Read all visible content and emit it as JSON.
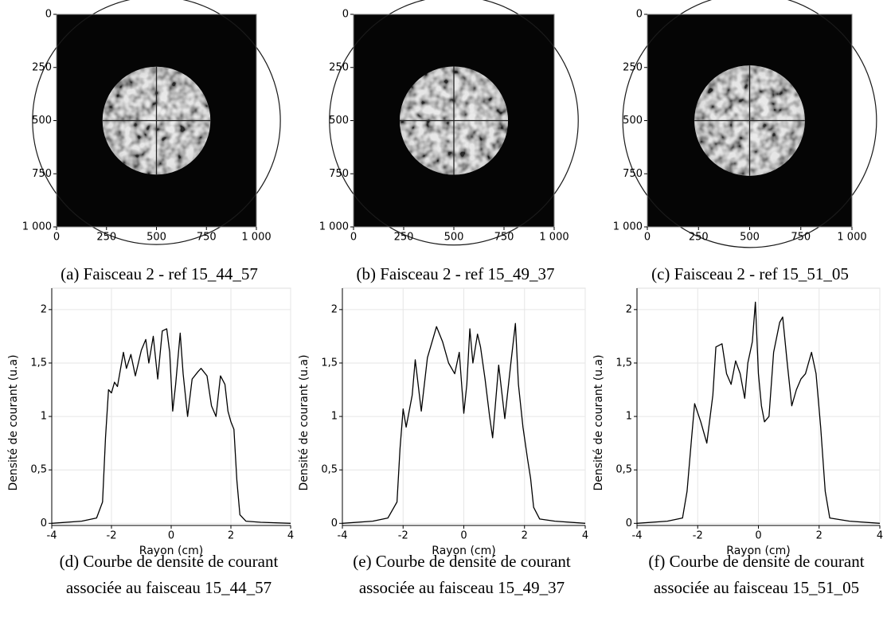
{
  "chart_data": [
    {
      "type": "image",
      "caption": "(a) Faisceau 2 - ref 15_44_57",
      "xlim": [
        0,
        1000
      ],
      "ylim": [
        1000,
        0
      ],
      "xticks": [
        0,
        250,
        500,
        750,
        {
          "value": 1000,
          "label": "1 000"
        }
      ],
      "yticks": [
        0,
        250,
        500,
        750,
        {
          "value": 1000,
          "label": "1 000"
        }
      ]
    },
    {
      "type": "image",
      "caption": "(b) Faisceau 2 - ref 15_49_37",
      "xlim": [
        0,
        1000
      ],
      "ylim": [
        1000,
        0
      ],
      "xticks": [
        0,
        250,
        500,
        750,
        {
          "value": 1000,
          "label": "1 000"
        }
      ],
      "yticks": [
        0,
        250,
        500,
        750,
        {
          "value": 1000,
          "label": "1 000"
        }
      ]
    },
    {
      "type": "image",
      "caption": "(c) Faisceau 2 - ref 15_51_05",
      "xlim": [
        0,
        1000
      ],
      "ylim": [
        1000,
        0
      ],
      "xticks": [
        0,
        250,
        500,
        750,
        {
          "value": 1000,
          "label": "1 000"
        }
      ],
      "yticks": [
        0,
        250,
        500,
        750,
        {
          "value": 1000,
          "label": "1 000"
        }
      ]
    },
    {
      "type": "line",
      "caption": [
        "(d) Courbe de densité de courant",
        "associée au faisceau 15_44_57"
      ],
      "x_label": "Rayon (cm)",
      "y_label": "Densité de courant (u.a)",
      "color": "#000000",
      "grid": true,
      "xlim": [
        -4,
        4
      ],
      "ylim": [
        -0.02,
        2.2
      ],
      "xticks": [
        -4,
        -2,
        0,
        2,
        4
      ],
      "yticks": [
        0,
        {
          "value": 0.5,
          "label": "0,5"
        },
        1,
        {
          "value": 1.5,
          "label": "1,5"
        },
        2
      ],
      "x": [
        -4,
        -3,
        -2.5,
        -2.3,
        -2.2,
        -2.1,
        -2.0,
        -1.9,
        -1.8,
        -1.6,
        -1.5,
        -1.35,
        -1.2,
        -1.0,
        -0.85,
        -0.75,
        -0.6,
        -0.45,
        -0.3,
        -0.15,
        -0.05,
        0.05,
        0.15,
        0.3,
        0.4,
        0.55,
        0.7,
        0.9,
        1.0,
        1.2,
        1.35,
        1.5,
        1.65,
        1.8,
        1.9,
        2.0,
        2.1,
        2.2,
        2.3,
        2.5,
        3,
        4
      ],
      "values": [
        0,
        0.02,
        0.05,
        0.2,
        0.8,
        1.25,
        1.22,
        1.32,
        1.28,
        1.6,
        1.45,
        1.58,
        1.38,
        1.62,
        1.72,
        1.5,
        1.75,
        1.35,
        1.8,
        1.82,
        1.6,
        1.05,
        1.3,
        1.78,
        1.4,
        1.0,
        1.35,
        1.42,
        1.45,
        1.38,
        1.1,
        1.0,
        1.38,
        1.3,
        1.05,
        0.95,
        0.88,
        0.4,
        0.08,
        0.02,
        0.01,
        0
      ]
    },
    {
      "type": "line",
      "caption": [
        "(e) Courbe de densité de courant",
        "associée au faisceau 15_49_37"
      ],
      "x_label": "Rayon (cm)",
      "y_label": "Densité de courant (u.a)",
      "color": "#000000",
      "grid": true,
      "xlim": [
        -4,
        4
      ],
      "ylim": [
        -0.02,
        2.2
      ],
      "xticks": [
        -4,
        -2,
        0,
        2,
        4
      ],
      "yticks": [
        0,
        {
          "value": 0.5,
          "label": "0,5"
        },
        1,
        {
          "value": 1.5,
          "label": "1,5"
        },
        2
      ],
      "x": [
        -4,
        -3,
        -2.5,
        -2.2,
        -2.1,
        -2.0,
        -1.9,
        -1.7,
        -1.6,
        -1.4,
        -1.2,
        -0.9,
        -0.7,
        -0.5,
        -0.3,
        -0.15,
        0,
        0.1,
        0.2,
        0.3,
        0.45,
        0.55,
        0.7,
        0.85,
        0.95,
        1.15,
        1.35,
        1.55,
        1.7,
        1.8,
        1.95,
        2.1,
        2.2,
        2.3,
        2.5,
        3,
        4
      ],
      "values": [
        0,
        0.02,
        0.05,
        0.2,
        0.7,
        1.07,
        0.9,
        1.2,
        1.53,
        1.05,
        1.55,
        1.84,
        1.7,
        1.5,
        1.4,
        1.6,
        1.03,
        1.3,
        1.82,
        1.5,
        1.77,
        1.65,
        1.35,
        1.0,
        0.8,
        1.48,
        0.98,
        1.5,
        1.87,
        1.3,
        0.9,
        0.6,
        0.42,
        0.15,
        0.04,
        0.02,
        0
      ]
    },
    {
      "type": "line",
      "caption": [
        "(f) Courbe de densité de courant",
        "associée au faisceau 15_51_05"
      ],
      "x_label": "Rayon (cm)",
      "y_label": "Densité de courant (u.a)",
      "color": "#000000",
      "grid": true,
      "xlim": [
        -4,
        4
      ],
      "ylim": [
        -0.02,
        2.2
      ],
      "xticks": [
        -4,
        -2,
        0,
        2,
        4
      ],
      "yticks": [
        0,
        {
          "value": 0.5,
          "label": "0,5"
        },
        1,
        {
          "value": 1.5,
          "label": "1,5"
        },
        2
      ],
      "x": [
        -4,
        -3,
        -2.5,
        -2.35,
        -2.2,
        -2.1,
        -1.9,
        -1.7,
        -1.5,
        -1.4,
        -1.2,
        -1.05,
        -0.9,
        -0.75,
        -0.6,
        -0.45,
        -0.35,
        -0.2,
        -0.1,
        0,
        0.1,
        0.2,
        0.35,
        0.5,
        0.7,
        0.8,
        0.95,
        1.1,
        1.25,
        1.4,
        1.55,
        1.75,
        1.9,
        2.05,
        2.2,
        2.35,
        3,
        4
      ],
      "values": [
        0,
        0.02,
        0.05,
        0.3,
        0.8,
        1.12,
        0.95,
        0.75,
        1.2,
        1.65,
        1.68,
        1.4,
        1.3,
        1.52,
        1.4,
        1.17,
        1.5,
        1.7,
        2.07,
        1.4,
        1.1,
        0.95,
        1.0,
        1.6,
        1.88,
        1.93,
        1.5,
        1.1,
        1.25,
        1.35,
        1.4,
        1.6,
        1.4,
        0.9,
        0.3,
        0.05,
        0.02,
        0
      ]
    }
  ]
}
